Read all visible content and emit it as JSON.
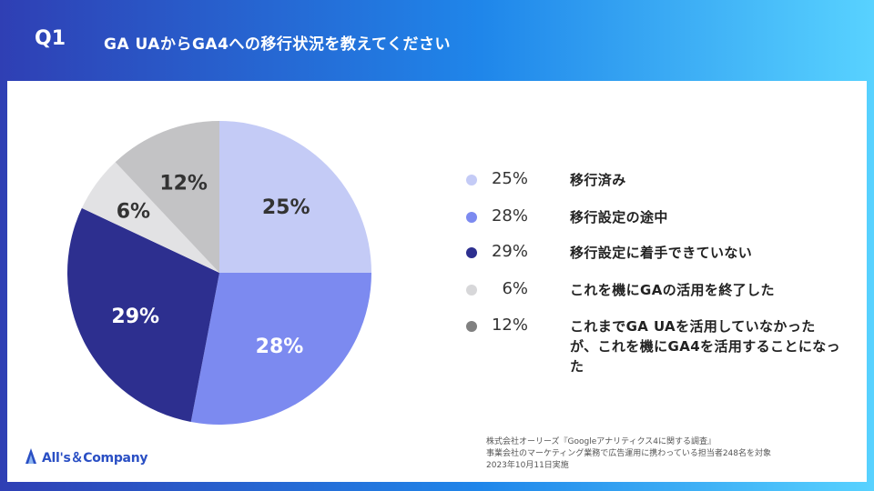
{
  "header": {
    "question_number": "Q1",
    "title": "GA UAからGA4への移行状況を教えてください"
  },
  "chart_data": {
    "type": "pie",
    "title": "GA UAからGA4への移行状況を教えてください",
    "start_angle_deg": 0,
    "direction": "clockwise",
    "slices": [
      {
        "label": "移行済み",
        "value": 25,
        "value_label": "25%",
        "color": "#c4cbf6"
      },
      {
        "label": "移行設定の途中",
        "value": 28,
        "value_label": "28%",
        "color": "#7c8af0"
      },
      {
        "label": "移行設定に着手できていない",
        "value": 29,
        "value_label": "29%",
        "color": "#2d2f8f"
      },
      {
        "label": "これを機にGAの活用を終了した",
        "value": 6,
        "value_label": "6%",
        "color": "#e2e2e4"
      },
      {
        "label": "これまでGA UAを活用していなかったが、これを機にGA4を活用すること になった",
        "value": 12,
        "value_label": "12%",
        "color": "#c3c3c5"
      }
    ]
  },
  "legend": {
    "items": [
      {
        "pct": "25%",
        "label": "移行済み",
        "color": "#c4cbf6"
      },
      {
        "pct": "28%",
        "label": "移行設定の途中",
        "color": "#7c8af0"
      },
      {
        "pct": "29%",
        "label": "移行設定に着手できていない",
        "color": "#2d2f8f"
      },
      {
        "pct": "6%",
        "label": "これを機にGAの活用を終了した",
        "color": "#d7d7d9"
      },
      {
        "pct": "12%",
        "label": "これまでGA UAを活用していなかったが、これを機にGA4を活用することになった",
        "color": "#808080"
      }
    ]
  },
  "source": {
    "line1": "株式会社オーリーズ『Googleアナリティクス4に関する調査』",
    "line2": "事業会社のマーケティング業務で広告運用に携わっている担当者248名を対象",
    "line3": "2023年10月11日実施"
  },
  "logo": {
    "text": "All's＆Company",
    "icon": "allsandcompany-logo-icon",
    "color": "#2a4fc4"
  }
}
